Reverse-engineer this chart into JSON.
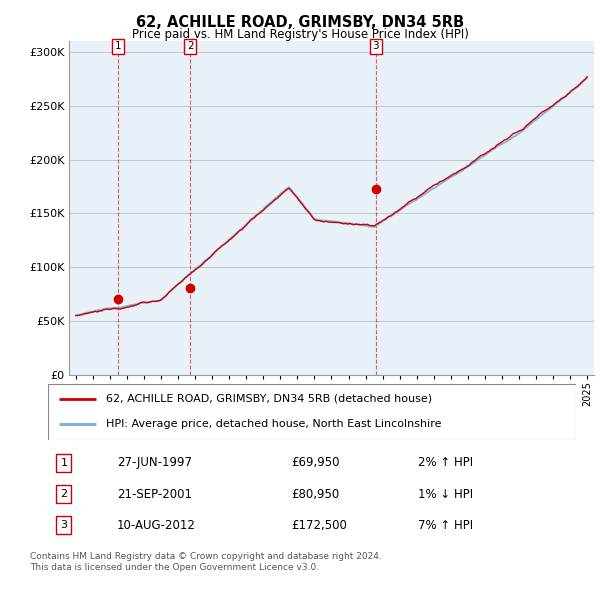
{
  "title": "62, ACHILLE ROAD, GRIMSBY, DN34 5RB",
  "subtitle": "Price paid vs. HM Land Registry's House Price Index (HPI)",
  "hpi_color": "#7aaed6",
  "price_color": "#cc0000",
  "plot_bg": "#e8f0f8",
  "ylim": [
    0,
    310000
  ],
  "yticks": [
    0,
    50000,
    100000,
    150000,
    200000,
    250000,
    300000
  ],
  "ytick_labels": [
    "£0",
    "£50K",
    "£100K",
    "£150K",
    "£200K",
    "£250K",
    "£300K"
  ],
  "sales": [
    {
      "date_num": 1997.49,
      "price": 69950,
      "label": "1"
    },
    {
      "date_num": 2001.72,
      "price": 80950,
      "label": "2"
    },
    {
      "date_num": 2012.6,
      "price": 172500,
      "label": "3"
    }
  ],
  "legend_line1": "62, ACHILLE ROAD, GRIMSBY, DN34 5RB (detached house)",
  "legend_line2": "HPI: Average price, detached house, North East Lincolnshire",
  "table_rows": [
    {
      "num": "1",
      "date": "27-JUN-1997",
      "price": "£69,950",
      "hpi": "2% ↑ HPI"
    },
    {
      "num": "2",
      "date": "21-SEP-2001",
      "price": "£80,950",
      "hpi": "1% ↓ HPI"
    },
    {
      "num": "3",
      "date": "10-AUG-2012",
      "price": "£172,500",
      "hpi": "7% ↑ HPI"
    }
  ],
  "footer": "Contains HM Land Registry data © Crown copyright and database right 2024.\nThis data is licensed under the Open Government Licence v3.0.",
  "xmin": 1994.6,
  "xmax": 2025.4
}
